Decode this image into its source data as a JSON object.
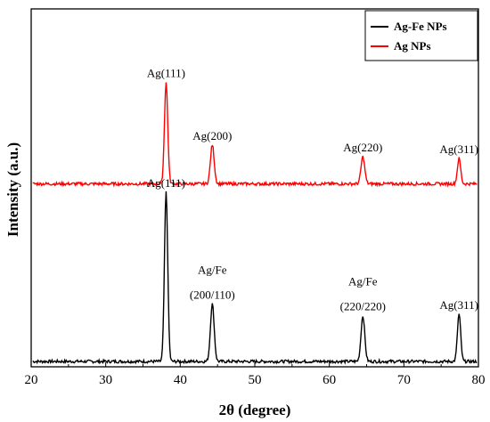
{
  "chart_data": {
    "type": "line",
    "xlabel": "2θ (degree)",
    "ylabel": "Intensity (a.u.)",
    "xlim": [
      20,
      80
    ],
    "xticks": [
      20,
      30,
      40,
      50,
      60,
      70,
      80
    ],
    "y_ticks_visible": false,
    "legend_position": "top-right",
    "grid": false,
    "series": [
      {
        "name": "Ag-Fe NPs",
        "color": "#000000",
        "baseline": 0.0,
        "peaks": [
          {
            "x": 38.1,
            "height": 1.0,
            "width": 0.22
          },
          {
            "x": 44.3,
            "height": 0.34,
            "width": 0.25
          },
          {
            "x": 64.5,
            "height": 0.27,
            "width": 0.25
          },
          {
            "x": 77.4,
            "height": 0.28,
            "width": 0.22
          }
        ],
        "annotations": [
          {
            "x": 38.1,
            "lines": [
              "Ag(111)"
            ]
          },
          {
            "x": 44.3,
            "lines": [
              "Ag/Fe",
              "(200/110)"
            ]
          },
          {
            "x": 64.5,
            "lines": [
              "Ag/Fe",
              "(220/220)"
            ]
          },
          {
            "x": 77.4,
            "lines": [
              "Ag(311)"
            ]
          }
        ]
      },
      {
        "name": "Ag NPs",
        "color": "#ff0000",
        "baseline": 1.05,
        "peaks": [
          {
            "x": 38.1,
            "height": 0.6,
            "width": 0.22
          },
          {
            "x": 44.3,
            "height": 0.23,
            "width": 0.25
          },
          {
            "x": 64.5,
            "height": 0.16,
            "width": 0.25
          },
          {
            "x": 77.4,
            "height": 0.15,
            "width": 0.22
          }
        ],
        "annotations": [
          {
            "x": 38.1,
            "lines": [
              "Ag(111)"
            ]
          },
          {
            "x": 44.3,
            "lines": [
              "Ag(200)"
            ]
          },
          {
            "x": 64.5,
            "lines": [
              "Ag(220)"
            ]
          },
          {
            "x": 77.4,
            "lines": [
              "Ag(311)"
            ]
          }
        ]
      }
    ]
  }
}
